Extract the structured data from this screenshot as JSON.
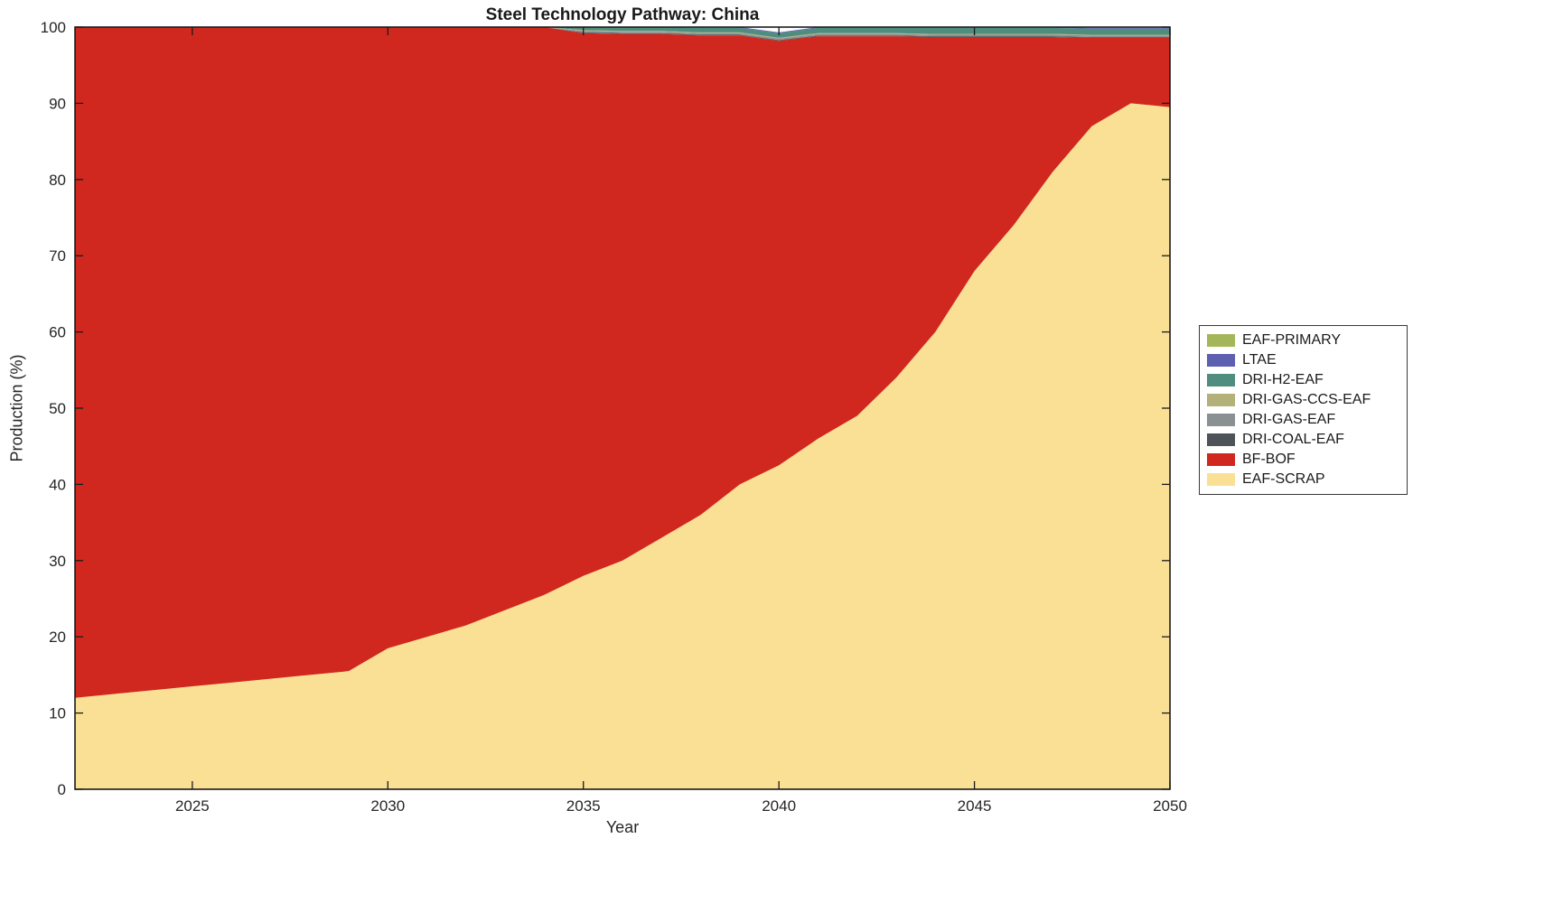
{
  "figure": {
    "background": "#ffffff",
    "axis_color": "#1a1a1a",
    "tick_label_color": "#262626"
  },
  "chart_data": {
    "type": "area",
    "stacked": true,
    "title": "Steel Technology Pathway: China",
    "xlabel": "Year",
    "ylabel": "Production (%)",
    "xlim": [
      2022,
      2050
    ],
    "ylim": [
      0,
      100
    ],
    "xticks": [
      2025,
      2030,
      2035,
      2040,
      2045,
      2050
    ],
    "yticks": [
      0,
      10,
      20,
      30,
      40,
      50,
      60,
      70,
      80,
      90,
      100
    ],
    "grid": false,
    "legend_position": "right-outside",
    "x": [
      2022,
      2023,
      2024,
      2025,
      2026,
      2027,
      2028,
      2029,
      2030,
      2031,
      2032,
      2033,
      2034,
      2035,
      2036,
      2037,
      2038,
      2039,
      2040,
      2041,
      2042,
      2043,
      2044,
      2045,
      2046,
      2047,
      2048,
      2049,
      2050
    ],
    "series": [
      {
        "name": "EAF-SCRAP",
        "color": "#F9E095",
        "values": [
          12.0,
          12.5,
          13.0,
          13.5,
          14.0,
          14.5,
          15.0,
          15.5,
          18.5,
          20.0,
          21.5,
          23.5,
          25.5,
          28.0,
          30.0,
          33.0,
          36.0,
          40.0,
          42.5,
          46.0,
          49.0,
          54.0,
          60.0,
          68.0,
          74.0,
          81.0,
          87.0,
          90.0,
          89.5
        ]
      },
      {
        "name": "BF-BOF",
        "color": "#D0281E",
        "values": [
          88.0,
          87.5,
          87.0,
          86.5,
          86.0,
          85.5,
          85.0,
          84.5,
          81.5,
          80.0,
          78.5,
          76.5,
          74.5,
          71.2,
          69.1,
          66.1,
          62.9,
          58.9,
          55.7,
          52.8,
          49.8,
          44.8,
          38.7,
          30.7,
          24.7,
          17.7,
          11.6,
          8.6,
          9.1
        ]
      },
      {
        "name": "DRI-COAL-EAF",
        "color": "#4D5359",
        "values": [
          0,
          0,
          0,
          0,
          0,
          0,
          0,
          0,
          0,
          0,
          0,
          0,
          0,
          0.1,
          0.1,
          0.1,
          0.1,
          0.1,
          0.1,
          0.1,
          0.1,
          0.1,
          0.1,
          0.1,
          0.1,
          0.1,
          0.1,
          0.1,
          0.1
        ]
      },
      {
        "name": "DRI-GAS-EAF",
        "color": "#8B9093",
        "values": [
          0,
          0,
          0,
          0,
          0,
          0,
          0,
          0,
          0,
          0,
          0,
          0,
          0,
          0.2,
          0.2,
          0.2,
          0.2,
          0.2,
          0.2,
          0.2,
          0.2,
          0.2,
          0.2,
          0.2,
          0.2,
          0.2,
          0.2,
          0.2,
          0.2
        ]
      },
      {
        "name": "DRI-GAS-CCS-EAF",
        "color": "#B3B079",
        "values": [
          0,
          0,
          0,
          0,
          0,
          0,
          0,
          0,
          0,
          0,
          0,
          0,
          0,
          0.1,
          0.1,
          0.1,
          0.1,
          0.1,
          0.1,
          0.1,
          0.1,
          0.1,
          0.1,
          0.1,
          0.1,
          0.1,
          0.1,
          0.1,
          0.1
        ]
      },
      {
        "name": "DRI-H2-EAF",
        "color": "#4F8E7F",
        "values": [
          0,
          0,
          0,
          0,
          0,
          0,
          0,
          0,
          0,
          0,
          0,
          0,
          0,
          0.4,
          0.5,
          0.5,
          0.6,
          0.6,
          0.6,
          0.7,
          0.7,
          0.7,
          0.8,
          0.8,
          0.8,
          0.8,
          0.8,
          0.8,
          0.8
        ]
      },
      {
        "name": "LTAE",
        "color": "#5D5FB0",
        "values": [
          0,
          0,
          0,
          0,
          0,
          0,
          0,
          0,
          0,
          0,
          0,
          0,
          0,
          0,
          0,
          0,
          0.1,
          0.1,
          0.1,
          0.1,
          0.1,
          0.1,
          0.1,
          0.1,
          0.1,
          0.1,
          0.1,
          0.1,
          0.1
        ]
      },
      {
        "name": "EAF-PRIMARY",
        "color": "#A3B75A",
        "values": [
          0,
          0,
          0,
          0,
          0,
          0,
          0,
          0,
          0,
          0,
          0,
          0,
          0,
          0,
          0,
          0,
          0,
          0,
          0,
          0,
          0,
          0,
          0,
          0,
          0,
          0,
          0.1,
          0.1,
          0.1
        ]
      }
    ],
    "totals": [
      100,
      100,
      100,
      100,
      100,
      100,
      100,
      100,
      100,
      100,
      100,
      100,
      100,
      100,
      100,
      100,
      100,
      100,
      99.3,
      100,
      100,
      100,
      100,
      100,
      100,
      100,
      100,
      100,
      100
    ],
    "legend_labels_top_to_bottom": [
      "EAF-PRIMARY",
      "LTAE",
      "DRI-H2-EAF",
      "DRI-GAS-CCS-EAF",
      "DRI-GAS-EAF",
      "DRI-COAL-EAF",
      "BF-BOF",
      "EAF-SCRAP"
    ]
  }
}
